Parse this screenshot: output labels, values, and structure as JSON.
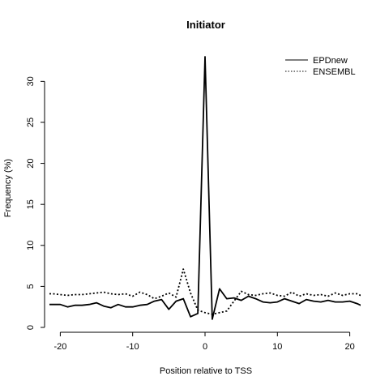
{
  "chart_data": {
    "type": "line",
    "title": "Initiator",
    "xlabel": "Position relative to TSS",
    "ylabel": "Frequency (%)",
    "xlim": [
      -21.5,
      21.5
    ],
    "ylim": [
      0,
      33
    ],
    "xticks": [
      -20,
      -10,
      0,
      10,
      20
    ],
    "yticks": [
      0,
      5,
      10,
      15,
      20,
      25,
      30
    ],
    "xtick_labels": [
      "-20",
      "-10",
      "0",
      "10",
      "20"
    ],
    "ytick_labels": [
      "0",
      "5",
      "10",
      "15",
      "20",
      "25",
      "30"
    ],
    "grid": false,
    "legend_position": "top-right",
    "x": [
      -22,
      -21,
      -20,
      -19,
      -18,
      -17,
      -16,
      -15,
      -14,
      -13,
      -12,
      -11,
      -10,
      -9,
      -8,
      -7,
      -6,
      -5,
      -4,
      -3,
      -2,
      -1,
      0,
      1,
      2,
      3,
      4,
      5,
      6,
      7,
      8,
      9,
      10,
      11,
      12,
      13,
      14,
      15,
      16,
      17,
      18,
      19,
      20,
      21,
      22
    ],
    "series": [
      {
        "name": "EPDnew",
        "style": "solid",
        "color": "#000000",
        "values": [
          2.8,
          2.8,
          2.8,
          2.5,
          2.7,
          2.7,
          2.8,
          3.0,
          2.6,
          2.4,
          2.8,
          2.5,
          2.5,
          2.7,
          2.8,
          3.2,
          3.4,
          2.2,
          3.2,
          3.5,
          1.3,
          1.7,
          33.0,
          1.0,
          4.7,
          3.5,
          3.6,
          3.3,
          3.8,
          3.5,
          3.1,
          3.0,
          3.1,
          3.5,
          3.2,
          2.9,
          3.4,
          3.2,
          3.1,
          3.3,
          3.1,
          3.1,
          3.2,
          2.9,
          2.5
        ]
      },
      {
        "name": "ENSEMBL",
        "style": "dotted",
        "color": "#000000",
        "values": [
          4.1,
          4.1,
          4.0,
          3.9,
          4.0,
          4.0,
          4.1,
          4.2,
          4.3,
          4.1,
          4.0,
          4.1,
          3.8,
          4.3,
          4.0,
          3.5,
          3.8,
          4.2,
          3.7,
          7.1,
          4.2,
          2.1,
          1.8,
          1.6,
          1.8,
          2.0,
          3.2,
          4.4,
          4.0,
          3.9,
          4.1,
          4.2,
          3.9,
          3.8,
          4.3,
          3.8,
          4.1,
          3.9,
          4.0,
          3.8,
          4.2,
          3.9,
          4.1,
          4.1,
          3.7
        ]
      }
    ]
  }
}
